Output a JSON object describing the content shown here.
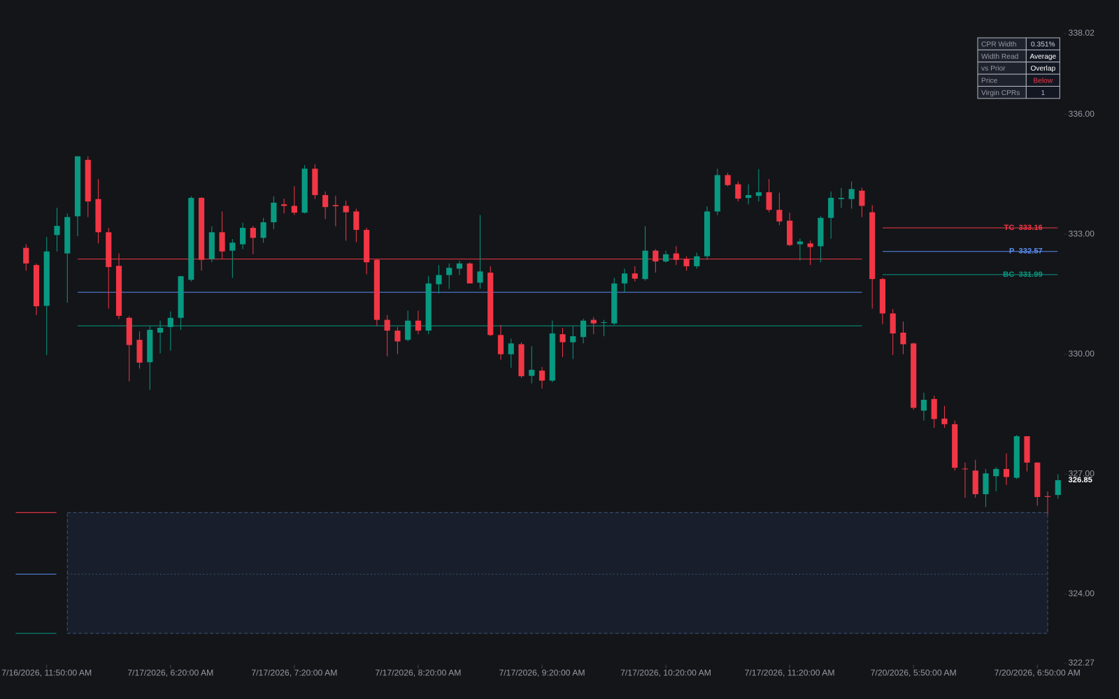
{
  "chart_data": {
    "type": "candlestick",
    "categories": [
      null,
      null,
      "7/16/2026, 11:50:00 AM",
      null,
      null,
      null,
      null,
      null,
      null,
      null,
      null,
      null,
      null,
      null,
      "7/17/2026, 6:20:00 AM",
      null,
      null,
      null,
      null,
      null,
      null,
      null,
      null,
      null,
      null,
      null,
      "7/17/2026, 7:20:00 AM",
      null,
      null,
      null,
      null,
      null,
      null,
      null,
      null,
      null,
      null,
      null,
      "7/17/2026, 8:20:00 AM",
      null,
      null,
      null,
      null,
      null,
      null,
      null,
      null,
      null,
      null,
      null,
      "7/17/2026, 9:20:00 AM",
      null,
      null,
      null,
      null,
      null,
      null,
      null,
      null,
      null,
      null,
      null,
      "7/17/2026, 10:20:00 AM",
      null,
      null,
      null,
      null,
      null,
      null,
      null,
      null,
      null,
      null,
      null,
      "7/17/2026, 11:20:00 AM",
      null,
      null,
      null,
      null,
      null,
      null,
      null,
      null,
      null,
      null,
      null,
      "7/20/2026, 5:50:00 AM",
      null,
      null,
      null,
      null,
      null,
      null,
      null,
      null,
      null,
      null,
      null,
      "7/20/2026, 6:50:00 AM",
      null,
      null
    ],
    "open": [
      332.66,
      332.23,
      331.21,
      332.98,
      332.52,
      333.45,
      334.86,
      333.88,
      333.05,
      332.21,
      330.91,
      330.36,
      329.8,
      330.54,
      330.68,
      330.91,
      331.86,
      333.91,
      332.38,
      333.05,
      332.59,
      332.75,
      333.16,
      332.91,
      333.3,
      333.75,
      333.71,
      333.54,
      334.64,
      333.98,
      333.73,
      333.71,
      333.57,
      333.11,
      332.36,
      330.86,
      330.59,
      330.36,
      330.84,
      330.59,
      331.75,
      331.98,
      332.14,
      332.27,
      331.79,
      332.04,
      330.48,
      330.0,
      330.25,
      329.46,
      329.59,
      329.34,
      330.5,
      330.3,
      330.43,
      330.86,
      330.79,
      330.77,
      331.77,
      332.02,
      331.88,
      332.59,
      332.32,
      332.52,
      332.38,
      332.2,
      332.45,
      333.57,
      334.48,
      334.25,
      333.91,
      333.96,
      334.05,
      333.61,
      333.34,
      332.75,
      332.77,
      332.7,
      333.41,
      333.88,
      333.88,
      334.09,
      333.55,
      331.88,
      331.02,
      330.54,
      330.27,
      328.59,
      328.88,
      328.39,
      328.25,
      327.14,
      327.09,
      326.5,
      326.95,
      327.13,
      326.91,
      327.95,
      327.29,
      326.45,
      326.48
    ],
    "high": [
      332.75,
      332.27,
      332.93,
      333.66,
      333.52,
      334.95,
      334.95,
      334.38,
      333.16,
      332.52,
      330.95,
      330.57,
      330.7,
      330.84,
      331.07,
      331.96,
      333.95,
      333.93,
      333.2,
      333.57,
      332.88,
      333.29,
      333.21,
      333.41,
      333.95,
      333.89,
      334.2,
      334.73,
      334.75,
      334.07,
      333.96,
      333.84,
      333.64,
      333.16,
      332.39,
      330.98,
      330.68,
      331.09,
      331.09,
      331.96,
      332.23,
      332.27,
      332.34,
      332.3,
      333.48,
      332.2,
      330.73,
      330.39,
      330.3,
      330.2,
      329.68,
      330.84,
      330.66,
      330.7,
      330.89,
      330.93,
      330.86,
      331.91,
      332.14,
      332.2,
      333.2,
      332.63,
      332.59,
      332.7,
      332.45,
      332.54,
      333.7,
      334.64,
      334.54,
      334.32,
      334.25,
      334.63,
      334.38,
      334.04,
      333.54,
      332.89,
      332.84,
      333.45,
      334.07,
      334.16,
      334.32,
      334.16,
      333.73,
      331.91,
      331.13,
      330.82,
      330.29,
      329.04,
      328.96,
      328.71,
      328.34,
      327.29,
      327.36,
      327.13,
      327.18,
      327.52,
      327.98,
      327.95,
      327.3,
      326.57,
      327.0
    ],
    "low": [
      332.09,
      330.98,
      329.98,
      332.57,
      331.29,
      332.95,
      333.43,
      332.77,
      331.14,
      330.88,
      329.32,
      329.64,
      329.11,
      330.02,
      330.09,
      330.61,
      331.82,
      332.09,
      332.3,
      332.39,
      331.91,
      332.63,
      332.5,
      332.79,
      333.13,
      333.52,
      333.48,
      333.52,
      333.88,
      333.38,
      333.2,
      332.84,
      332.8,
      332.0,
      330.71,
      329.95,
      330.0,
      330.32,
      330.5,
      330.5,
      331.52,
      331.63,
      331.98,
      331.77,
      331.64,
      330.45,
      329.86,
      329.66,
      329.41,
      329.27,
      329.14,
      329.3,
      329.93,
      329.88,
      330.27,
      330.5,
      330.45,
      330.73,
      331.55,
      331.82,
      331.84,
      332.04,
      332.29,
      332.23,
      332.09,
      332.14,
      332.36,
      333.48,
      334.2,
      333.82,
      333.75,
      333.82,
      333.55,
      333.23,
      332.7,
      332.34,
      332.23,
      332.3,
      332.89,
      333.66,
      333.64,
      333.43,
      331.14,
      330.75,
      329.98,
      330.0,
      328.61,
      328.34,
      328.16,
      328.16,
      327.09,
      326.41,
      326.41,
      326.18,
      326.57,
      326.73,
      326.88,
      327.07,
      326.21,
      326.0,
      326.39
    ],
    "close": [
      332.27,
      331.2,
      332.57,
      333.21,
      333.43,
      334.95,
      333.82,
      333.05,
      332.18,
      330.96,
      330.23,
      329.79,
      330.61,
      330.66,
      330.91,
      331.95,
      333.91,
      332.36,
      333.05,
      332.57,
      332.79,
      333.16,
      332.91,
      333.3,
      333.79,
      333.71,
      333.54,
      334.64,
      333.98,
      333.68,
      333.7,
      333.55,
      333.11,
      332.3,
      330.86,
      330.59,
      330.32,
      330.84,
      330.59,
      331.77,
      331.98,
      332.16,
      332.27,
      331.77,
      332.07,
      330.48,
      330.0,
      330.27,
      329.45,
      329.61,
      329.34,
      330.52,
      330.3,
      330.45,
      330.84,
      330.77,
      330.8,
      331.77,
      332.02,
      331.89,
      332.59,
      332.32,
      332.5,
      332.36,
      332.2,
      332.45,
      333.57,
      334.48,
      334.23,
      333.89,
      333.98,
      334.05,
      333.61,
      333.32,
      332.73,
      332.82,
      332.68,
      333.41,
      333.91,
      333.91,
      334.13,
      333.71,
      331.88,
      331.02,
      330.52,
      330.25,
      328.66,
      328.86,
      328.38,
      328.25,
      327.16,
      327.13,
      326.5,
      327.02,
      327.13,
      326.93,
      327.95,
      327.29,
      326.43,
      326.43,
      326.85
    ],
    "up_color": "#089981",
    "down_color": "#f23645",
    "ylim": [
      322.27,
      338.02
    ],
    "yticks": [
      338.02,
      {
        "value": 336,
        "label": "336.00"
      },
      {
        "value": 333,
        "label": "333.00"
      },
      {
        "value": 330,
        "label": "330.00"
      },
      {
        "value": 327,
        "label": "327.00"
      },
      {
        "value": 324,
        "label": "324.00"
      },
      322.27
    ],
    "levels": [
      {
        "name": "TC",
        "value": 333.16,
        "color": "#f23645"
      },
      {
        "name": "P",
        "value": 332.57,
        "color": "#5b8def"
      },
      {
        "name": "BC",
        "value": 331.99,
        "color": "#089981"
      }
    ],
    "prior_cpr": [
      332.38,
      331.55,
      330.71
    ],
    "virgin_cpr": [
      326.04,
      324.5,
      323.02
    ]
  },
  "table": {
    "rows": [
      {
        "label": "CPR Width",
        "value": "0.351%",
        "color": "#d1d4dc"
      },
      {
        "label": "Width Read",
        "value": "Average",
        "color": "#ffffff"
      },
      {
        "label": "vs Prior",
        "value": "Overlap",
        "color": "#ffffff"
      },
      {
        "label": "Price",
        "value": "Below",
        "color": "#f23645"
      },
      {
        "label": "Virgin CPRs",
        "value": "1",
        "color": "#9fb4d6"
      }
    ]
  }
}
